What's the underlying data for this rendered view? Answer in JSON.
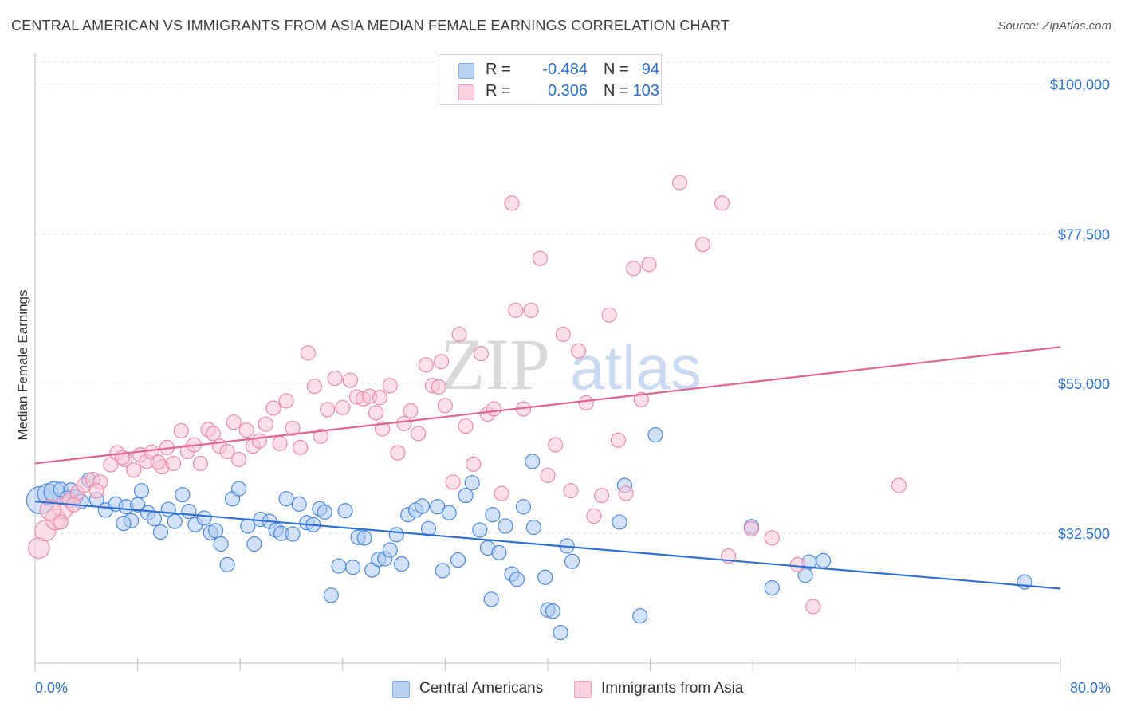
{
  "title": "CENTRAL AMERICAN VS IMMIGRANTS FROM ASIA MEDIAN FEMALE EARNINGS CORRELATION CHART",
  "source": "Source: ZipAtlas.com",
  "watermark": {
    "zip": "ZIP",
    "atlas": "atlas"
  },
  "legend": {
    "r_label": "R =",
    "n_label": "N =",
    "rows": [
      {
        "r": "-0.484",
        "n": "94",
        "color": "#7fb0ea"
      },
      {
        "r": "0.306",
        "n": "103",
        "color": "#f2a0bb"
      }
    ]
  },
  "bottom_legend": [
    {
      "label": "Central Americans",
      "color": "#7fb0ea"
    },
    {
      "label": "Immigrants from Asia",
      "color": "#f2a0bb"
    }
  ],
  "chart_data": {
    "type": "scatter",
    "title": "CENTRAL AMERICAN VS IMMIGRANTS FROM ASIA MEDIAN FEMALE EARNINGS CORRELATION CHART",
    "xlabel": "",
    "ylabel": "Median Female Earnings",
    "xlim": [
      0,
      80
    ],
    "ylim": [
      13000,
      104000
    ],
    "x_tick_labels": [
      "0.0%",
      "80.0%"
    ],
    "y_ticks": [
      32500,
      55000,
      77500,
      100000
    ],
    "y_tick_labels": [
      "$32,500",
      "$55,000",
      "$77,500",
      "$100,000"
    ],
    "grid": true,
    "legend_position": "top-center",
    "series": [
      {
        "name": "Central Americans",
        "color": "#4a88e0",
        "fill": "#aecbf2",
        "trend": {
          "x": [
            0,
            80
          ],
          "y": [
            37300,
            24200
          ],
          "color": "#2e6fd4"
        },
        "points": [
          [
            0.4,
            37.5,
            3
          ],
          [
            1.0,
            38.4,
            2
          ],
          [
            1.5,
            38.7,
            2
          ],
          [
            2.0,
            39.1,
            1
          ],
          [
            2.8,
            39.0,
            1
          ],
          [
            3.2,
            38.0,
            1
          ],
          [
            3.6,
            37.3,
            1
          ],
          [
            4.2,
            40.5,
            1
          ],
          [
            4.8,
            37.6,
            1
          ],
          [
            5.5,
            36.0,
            1
          ],
          [
            6.3,
            36.9,
            1
          ],
          [
            7.1,
            36.5,
            1
          ],
          [
            7.5,
            34.4,
            1
          ],
          [
            8.0,
            36.8,
            1
          ],
          [
            8.3,
            38.9,
            1
          ],
          [
            8.8,
            35.6,
            1
          ],
          [
            9.3,
            34.7,
            1
          ],
          [
            9.8,
            32.7,
            1
          ],
          [
            10.4,
            36.1,
            1
          ],
          [
            10.9,
            34.3,
            1
          ],
          [
            11.5,
            38.3,
            1
          ],
          [
            12.0,
            35.8,
            1
          ],
          [
            12.5,
            33.8,
            1
          ],
          [
            13.2,
            34.8,
            1
          ],
          [
            13.7,
            32.6,
            1
          ],
          [
            14.1,
            32.9,
            1
          ],
          [
            14.5,
            30.9,
            1
          ],
          [
            15.0,
            27.8,
            1
          ],
          [
            15.4,
            37.7,
            1
          ],
          [
            15.9,
            39.2,
            1
          ],
          [
            16.6,
            33.6,
            1
          ],
          [
            17.1,
            30.9,
            1
          ],
          [
            17.6,
            34.6,
            1
          ],
          [
            18.3,
            34.3,
            1
          ],
          [
            18.8,
            33.0,
            1
          ],
          [
            19.2,
            32.5,
            1
          ],
          [
            19.6,
            37.7,
            1
          ],
          [
            20.1,
            32.4,
            1
          ],
          [
            20.6,
            36.9,
            1
          ],
          [
            21.2,
            34.1,
            1
          ],
          [
            21.7,
            33.8,
            1
          ],
          [
            22.2,
            36.2,
            1
          ],
          [
            22.6,
            35.7,
            1
          ],
          [
            23.1,
            23.2,
            1
          ],
          [
            23.7,
            27.6,
            1
          ],
          [
            24.2,
            35.9,
            1
          ],
          [
            24.8,
            27.4,
            1
          ],
          [
            25.2,
            31.9,
            1
          ],
          [
            25.7,
            31.8,
            1
          ],
          [
            26.3,
            27.0,
            1
          ],
          [
            26.8,
            28.6,
            1
          ],
          [
            27.3,
            28.7,
            1
          ],
          [
            27.7,
            30.0,
            1
          ],
          [
            28.2,
            32.3,
            1
          ],
          [
            28.6,
            27.9,
            1
          ],
          [
            29.1,
            35.3,
            1
          ],
          [
            29.7,
            36.0,
            1
          ],
          [
            30.2,
            36.6,
            1
          ],
          [
            30.7,
            33.2,
            1
          ],
          [
            31.4,
            36.5,
            1
          ],
          [
            31.8,
            26.9,
            1
          ],
          [
            32.3,
            35.6,
            1
          ],
          [
            33.0,
            28.5,
            1
          ],
          [
            33.6,
            38.2,
            1
          ],
          [
            34.1,
            40.1,
            1
          ],
          [
            34.7,
            33.0,
            1
          ],
          [
            35.3,
            30.3,
            1
          ],
          [
            35.6,
            22.6,
            1
          ],
          [
            35.7,
            35.3,
            1
          ],
          [
            36.2,
            29.6,
            1
          ],
          [
            36.7,
            33.6,
            1
          ],
          [
            37.2,
            26.4,
            1
          ],
          [
            37.6,
            25.6,
            1
          ],
          [
            38.1,
            36.5,
            1
          ],
          [
            38.8,
            43.3,
            1
          ],
          [
            38.9,
            33.4,
            1
          ],
          [
            39.8,
            25.9,
            1
          ],
          [
            40.0,
            21.0,
            1
          ],
          [
            40.4,
            20.8,
            1
          ],
          [
            41.0,
            17.6,
            1
          ],
          [
            41.5,
            30.6,
            1
          ],
          [
            41.9,
            28.3,
            1
          ],
          [
            46.0,
            39.7,
            1
          ],
          [
            45.6,
            34.2,
            1
          ],
          [
            47.2,
            20.1,
            1
          ],
          [
            48.4,
            47.3,
            1
          ],
          [
            55.9,
            33.5,
            1
          ],
          [
            57.5,
            24.3,
            1
          ],
          [
            60.1,
            26.2,
            1
          ],
          [
            60.4,
            28.2,
            1
          ],
          [
            61.5,
            28.4,
            1
          ],
          [
            77.2,
            25.2,
            1
          ],
          [
            2.5,
            37.8,
            1
          ],
          [
            6.9,
            34.0,
            1
          ]
        ]
      },
      {
        "name": "Immigrants from Asia",
        "color": "#ec8aab",
        "fill": "#f8c6d6",
        "trend": {
          "x": [
            0,
            80
          ],
          "y": [
            43000,
            60500
          ],
          "color": "#e2648f"
        },
        "points": [
          [
            0.3,
            30.3,
            2
          ],
          [
            0.8,
            32.9,
            2
          ],
          [
            1.6,
            34.6,
            2
          ],
          [
            2.2,
            36.3,
            2
          ],
          [
            2.7,
            37.5,
            1
          ],
          [
            3.3,
            38.6,
            1
          ],
          [
            3.8,
            39.7,
            1
          ],
          [
            4.5,
            40.6,
            1
          ],
          [
            5.1,
            40.2,
            1
          ],
          [
            5.9,
            42.8,
            1
          ],
          [
            6.4,
            44.6,
            1
          ],
          [
            7.0,
            43.6,
            1
          ],
          [
            7.7,
            42.0,
            1
          ],
          [
            8.2,
            44.3,
            1
          ],
          [
            8.7,
            43.3,
            1
          ],
          [
            9.1,
            44.7,
            1
          ],
          [
            9.9,
            42.5,
            1
          ],
          [
            10.3,
            45.4,
            1
          ],
          [
            10.8,
            43.0,
            1
          ],
          [
            11.4,
            47.9,
            1
          ],
          [
            11.9,
            44.8,
            1
          ],
          [
            12.4,
            45.8,
            1
          ],
          [
            12.9,
            43.0,
            1
          ],
          [
            13.5,
            48.1,
            1
          ],
          [
            13.9,
            47.5,
            1
          ],
          [
            14.4,
            45.6,
            1
          ],
          [
            15.0,
            44.8,
            1
          ],
          [
            15.5,
            49.2,
            1
          ],
          [
            15.9,
            43.6,
            1
          ],
          [
            16.5,
            48.0,
            1
          ],
          [
            17.0,
            45.6,
            1
          ],
          [
            17.5,
            46.4,
            1
          ],
          [
            18.0,
            48.9,
            1
          ],
          [
            18.6,
            51.3,
            1
          ],
          [
            19.1,
            46.0,
            1
          ],
          [
            19.6,
            52.4,
            1
          ],
          [
            20.1,
            48.3,
            1
          ],
          [
            20.7,
            45.4,
            1
          ],
          [
            21.3,
            59.6,
            1
          ],
          [
            21.8,
            54.6,
            1
          ],
          [
            22.3,
            47.1,
            1
          ],
          [
            22.8,
            51.1,
            1
          ],
          [
            23.4,
            55.8,
            1
          ],
          [
            24.0,
            51.4,
            1
          ],
          [
            24.6,
            55.5,
            1
          ],
          [
            25.1,
            53.0,
            1
          ],
          [
            25.6,
            52.7,
            1
          ],
          [
            26.1,
            53.1,
            1
          ],
          [
            26.6,
            50.6,
            1
          ],
          [
            27.1,
            48.2,
            1
          ],
          [
            27.7,
            54.7,
            1
          ],
          [
            28.3,
            44.6,
            1
          ],
          [
            28.8,
            49.0,
            1
          ],
          [
            29.3,
            50.9,
            1
          ],
          [
            29.9,
            47.5,
            1
          ],
          [
            30.5,
            57.8,
            1
          ],
          [
            31.0,
            54.7,
            1
          ],
          [
            31.5,
            54.5,
            1
          ],
          [
            32.0,
            51.7,
            1
          ],
          [
            32.6,
            40.2,
            1
          ],
          [
            33.1,
            62.4,
            1
          ],
          [
            33.6,
            48.6,
            1
          ],
          [
            34.2,
            42.9,
            1
          ],
          [
            34.8,
            59.5,
            1
          ],
          [
            35.3,
            50.4,
            1
          ],
          [
            35.8,
            51.2,
            1
          ],
          [
            36.4,
            38.5,
            1
          ],
          [
            37.5,
            66.0,
            1
          ],
          [
            37.2,
            82.1,
            1
          ],
          [
            38.1,
            51.2,
            1
          ],
          [
            38.7,
            66.0,
            1
          ],
          [
            39.4,
            73.8,
            1
          ],
          [
            40.0,
            41.2,
            1
          ],
          [
            40.6,
            45.8,
            1
          ],
          [
            41.2,
            62.4,
            1
          ],
          [
            41.8,
            38.9,
            1
          ],
          [
            42.4,
            59.9,
            1
          ],
          [
            43.0,
            52.1,
            1
          ],
          [
            43.6,
            35.1,
            1
          ],
          [
            44.2,
            38.2,
            1
          ],
          [
            44.8,
            65.3,
            1
          ],
          [
            45.5,
            46.5,
            1
          ],
          [
            46.1,
            38.5,
            1
          ],
          [
            46.7,
            72.3,
            1
          ],
          [
            47.3,
            52.6,
            1
          ],
          [
            47.9,
            72.9,
            1
          ],
          [
            50.3,
            85.2,
            1
          ],
          [
            52.1,
            75.9,
            1
          ],
          [
            53.6,
            82.1,
            1
          ],
          [
            54.1,
            29.1,
            1
          ],
          [
            55.9,
            33.2,
            1
          ],
          [
            57.5,
            31.8,
            1
          ],
          [
            59.5,
            27.8,
            1
          ],
          [
            60.7,
            21.5,
            1
          ],
          [
            67.4,
            39.7,
            1
          ],
          [
            1.2,
            36.0,
            2
          ],
          [
            2.0,
            34.2,
            1
          ],
          [
            3.0,
            36.8,
            1
          ],
          [
            4.8,
            38.9,
            1
          ],
          [
            6.8,
            43.9,
            1
          ],
          [
            9.6,
            43.2,
            1
          ],
          [
            26.9,
            52.9,
            1
          ],
          [
            31.7,
            58.3,
            1
          ]
        ]
      }
    ]
  }
}
